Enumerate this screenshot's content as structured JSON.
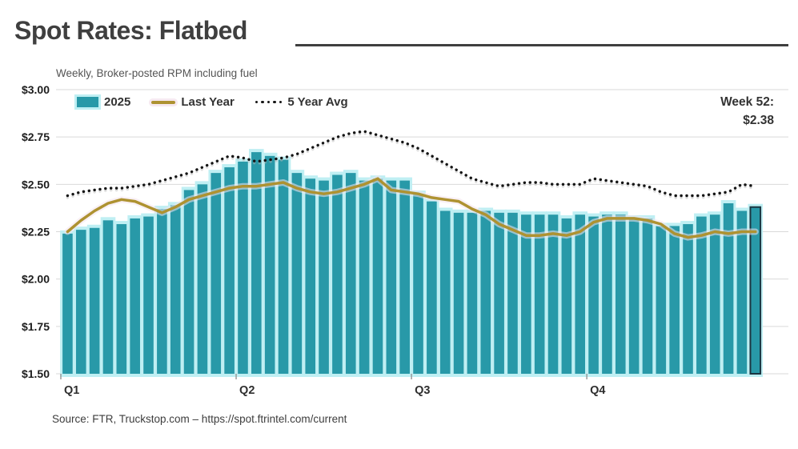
{
  "header": {
    "title": "Spot Rates: Flatbed",
    "subtitle": "Weekly, Broker-posted RPM including fuel"
  },
  "legend": {
    "items": [
      {
        "label": "2025"
      },
      {
        "label": "Last Year"
      },
      {
        "label": "5 Year Avg"
      }
    ]
  },
  "annotation": {
    "line1": "Week 52:",
    "line2": "$2.38"
  },
  "source": {
    "text": "Source: FTR, Truckstop.com – https://spot.ftrintel.com/current"
  },
  "colors": {
    "bar": "#2899a8",
    "bar_glow": "#bfeff3",
    "bar_highlight_outline": "#1b3642",
    "last_year_line": "#ae9231",
    "five_year_dots": "#151515",
    "gridline": "#d9d9d9",
    "title_text": "#3f3f3f"
  },
  "chart_data": {
    "type": "bar",
    "title": "Spot Rates: Flatbed",
    "subtitle": "Weekly, Broker-posted RPM including fuel",
    "x_unit": "week of year (1-52)",
    "ylim": [
      1.5,
      3.0
    ],
    "grid": true,
    "legend_position": "top-left",
    "y_ticks": [
      {
        "value": 3.0,
        "label": "$3.00"
      },
      {
        "value": 2.75,
        "label": "$2.75"
      },
      {
        "value": 2.5,
        "label": "$2.50"
      },
      {
        "value": 2.25,
        "label": "$2.25"
      },
      {
        "value": 2.0,
        "label": "$2.00"
      },
      {
        "value": 1.75,
        "label": "$1.75"
      },
      {
        "value": 1.5,
        "label": "$1.50"
      }
    ],
    "x_ticks": [
      {
        "label": "Q1",
        "week_start": 1
      },
      {
        "label": "Q2",
        "week_start": 14
      },
      {
        "label": "Q3",
        "week_start": 27
      },
      {
        "label": "Q4",
        "week_start": 40
      }
    ],
    "series": [
      {
        "name": "2025",
        "type": "bar",
        "color": "#2899a8",
        "values": [
          2.24,
          2.26,
          2.27,
          2.31,
          2.29,
          2.32,
          2.33,
          2.37,
          2.39,
          2.47,
          2.5,
          2.56,
          2.59,
          2.62,
          2.67,
          2.65,
          2.63,
          2.56,
          2.53,
          2.52,
          2.55,
          2.56,
          2.52,
          2.53,
          2.52,
          2.52,
          2.45,
          2.41,
          2.36,
          2.35,
          2.35,
          2.36,
          2.35,
          2.35,
          2.34,
          2.34,
          2.34,
          2.32,
          2.34,
          2.33,
          2.34,
          2.34,
          2.32,
          2.32,
          2.28,
          2.28,
          2.29,
          2.33,
          2.34,
          2.4,
          2.36,
          2.38
        ]
      },
      {
        "name": "Last Year",
        "type": "line",
        "color": "#ae9231",
        "values": [
          2.25,
          2.31,
          2.36,
          2.4,
          2.42,
          2.41,
          2.38,
          2.35,
          2.38,
          2.42,
          2.44,
          2.46,
          2.48,
          2.49,
          2.49,
          2.5,
          2.51,
          2.48,
          2.46,
          2.45,
          2.46,
          2.48,
          2.5,
          2.53,
          2.47,
          2.46,
          2.45,
          2.43,
          2.42,
          2.41,
          2.37,
          2.34,
          2.29,
          2.26,
          2.23,
          2.23,
          2.24,
          2.23,
          2.25,
          2.3,
          2.32,
          2.32,
          2.32,
          2.31,
          2.29,
          2.24,
          2.22,
          2.23,
          2.25,
          2.24,
          2.25,
          2.25
        ]
      },
      {
        "name": "5 Year Avg",
        "type": "dotted-line",
        "color": "#151515",
        "values": [
          2.44,
          2.46,
          2.47,
          2.48,
          2.48,
          2.49,
          2.5,
          2.52,
          2.54,
          2.56,
          2.59,
          2.62,
          2.65,
          2.64,
          2.62,
          2.63,
          2.64,
          2.66,
          2.69,
          2.72,
          2.75,
          2.77,
          2.78,
          2.76,
          2.74,
          2.72,
          2.69,
          2.65,
          2.61,
          2.57,
          2.53,
          2.51,
          2.49,
          2.5,
          2.51,
          2.51,
          2.5,
          2.5,
          2.5,
          2.53,
          2.52,
          2.51,
          2.5,
          2.49,
          2.46,
          2.44,
          2.44,
          2.44,
          2.45,
          2.46,
          2.5,
          2.49
        ]
      }
    ],
    "highlight": {
      "week": 52,
      "label": "Week 52:",
      "value": "$2.38"
    }
  }
}
